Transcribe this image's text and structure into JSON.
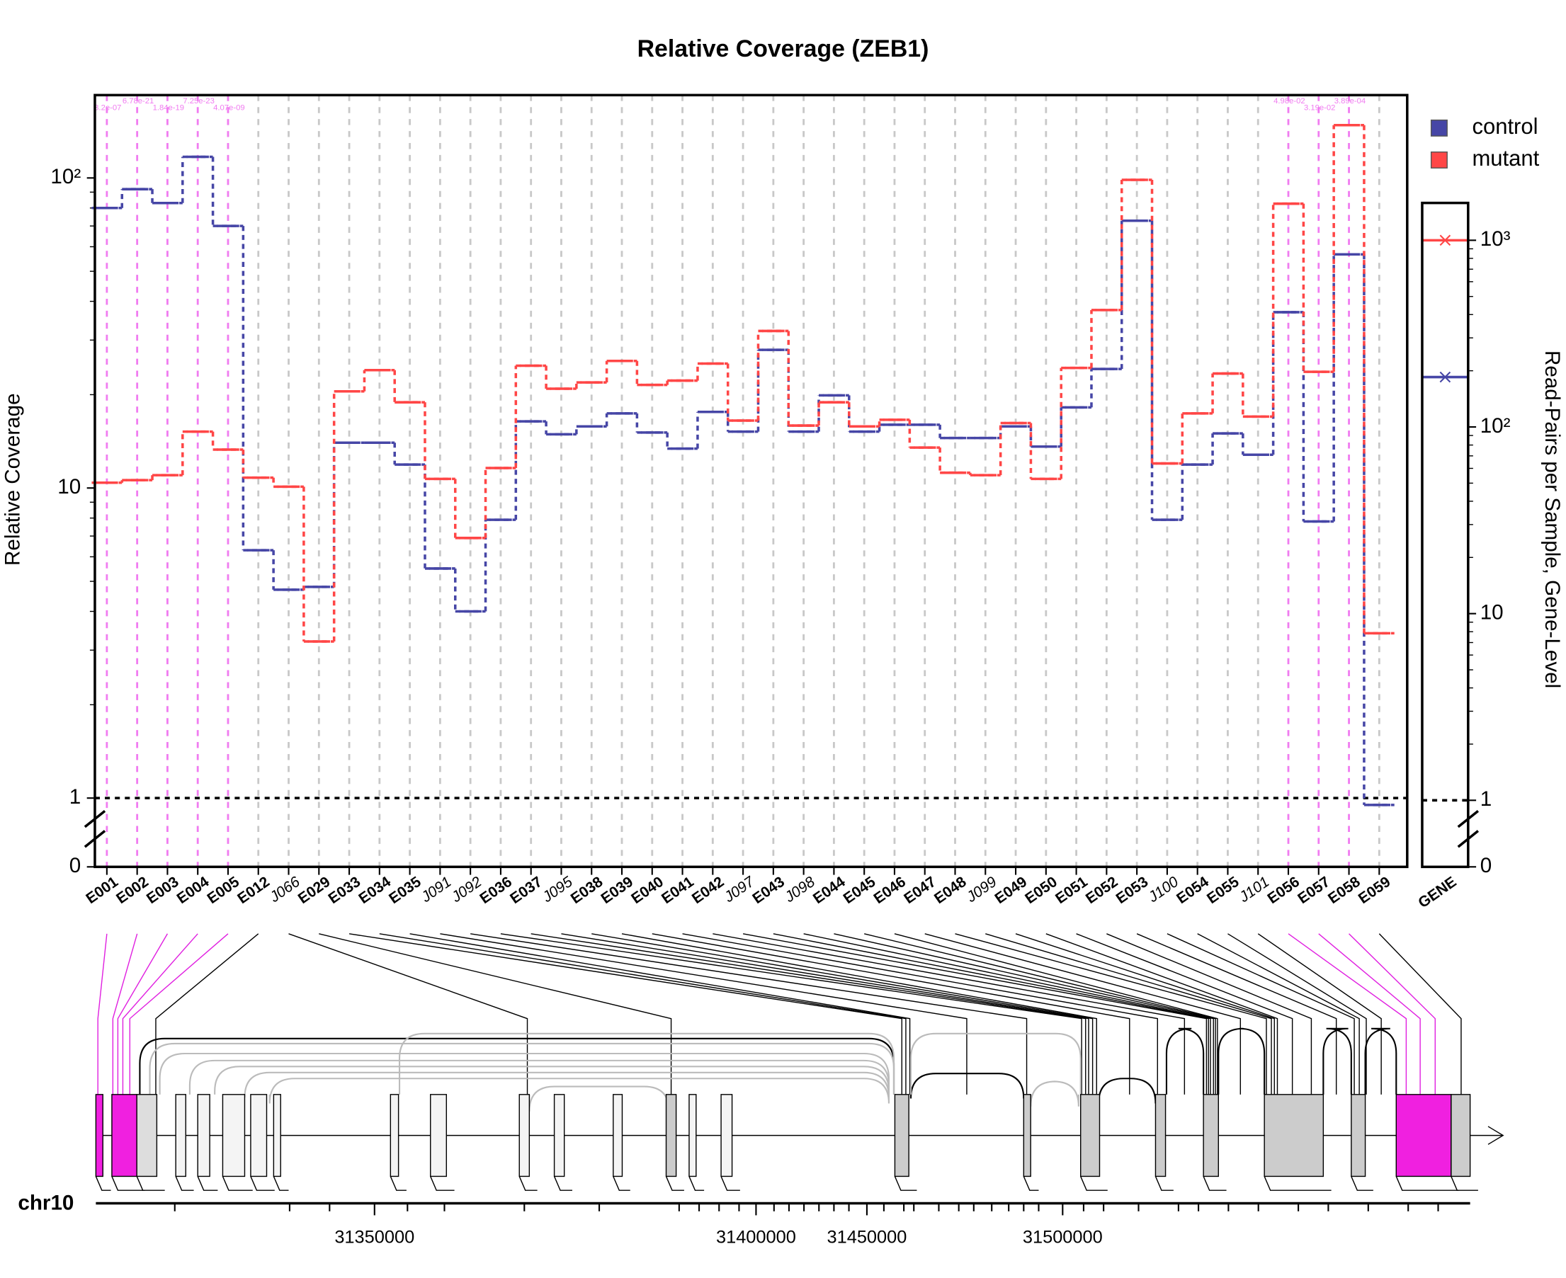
{
  "chart_data": {
    "type": "step",
    "title": "Relative Coverage (ZEB1)",
    "y_label": "Relative Coverage",
    "y2_label": "Read-Pairs per Sample, Gene-Level",
    "log_scale": true,
    "categories": [
      "E001",
      "E002",
      "E003",
      "E004",
      "E005",
      "E012",
      "J066",
      "E029",
      "E033",
      "E034",
      "E035",
      "J091",
      "J092",
      "E036",
      "E037",
      "J095",
      "E038",
      "E039",
      "E040",
      "E041",
      "E042",
      "J097",
      "E043",
      "J098",
      "E044",
      "E045",
      "E046",
      "E047",
      "E048",
      "J099",
      "E049",
      "E050",
      "E051",
      "E052",
      "E053",
      "J100",
      "E054",
      "E055",
      "J101",
      "E056",
      "E057",
      "E058",
      "E059"
    ],
    "series": [
      {
        "name": "control",
        "color": "#4646a6",
        "values": [
          80,
          92,
          83,
          117,
          70,
          6.3,
          4.7,
          4.8,
          14.0,
          14.0,
          11.9,
          5.5,
          4.0,
          7.9,
          16.4,
          14.9,
          15.8,
          17.4,
          15.1,
          13.4,
          17.6,
          15.2,
          27.9,
          15.2,
          19.9,
          15.2,
          16.0,
          16.0,
          14.5,
          14.5,
          15.8,
          13.6,
          18.2,
          24.2,
          72.8,
          7.9,
          11.9,
          15.0,
          12.8,
          36.9,
          7.8,
          56.7,
          0.95
        ]
      },
      {
        "name": "mutant",
        "color": "#ff4646",
        "values": [
          10.4,
          10.6,
          11.0,
          15.2,
          13.3,
          10.8,
          10.1,
          3.2,
          20.5,
          24,
          18.9,
          10.7,
          6.9,
          11.6,
          24.8,
          20.9,
          21.9,
          25.7,
          21.5,
          22.2,
          25.2,
          16.5,
          32.1,
          15.9,
          18.9,
          15.8,
          16.6,
          13.5,
          11.2,
          11.0,
          16.2,
          10.7,
          24.4,
          37.5,
          98.6,
          12.0,
          17.4,
          23.4,
          17.0,
          82.6,
          23.7,
          148,
          3.4
        ]
      }
    ],
    "pvalue_labels": [
      "3.2e-07",
      "6.78e-21",
      "1.84e-19",
      "7.25e-23",
      "4.07e-09",
      null,
      null,
      null,
      null,
      null,
      null,
      null,
      null,
      null,
      null,
      null,
      null,
      null,
      null,
      null,
      null,
      null,
      null,
      null,
      null,
      null,
      null,
      null,
      null,
      null,
      null,
      null,
      null,
      null,
      null,
      null,
      null,
      null,
      null,
      "4.98e-02",
      "3.19e-02",
      "3.89e-04",
      null
    ],
    "ylim": [
      0.6,
      185
    ],
    "yticks": [
      {
        "value": 0,
        "label": "0"
      },
      1,
      10,
      {
        "value": 100,
        "label": "10²"
      }
    ],
    "gene_panel": {
      "category": "GENE",
      "values": [
        185,
        1000
      ],
      "y2lim": [
        0.44,
        1585
      ],
      "y2ticks": [
        {
          "value": 0,
          "label": "0"
        },
        1,
        10,
        {
          "value": 100,
          "label": "10²"
        },
        {
          "value": 1000,
          "label": "10³"
        }
      ]
    },
    "genome": {
      "chromosome": "chr10",
      "ticks": [
        31350000,
        31400000,
        31450000,
        31500000
      ]
    }
  }
}
